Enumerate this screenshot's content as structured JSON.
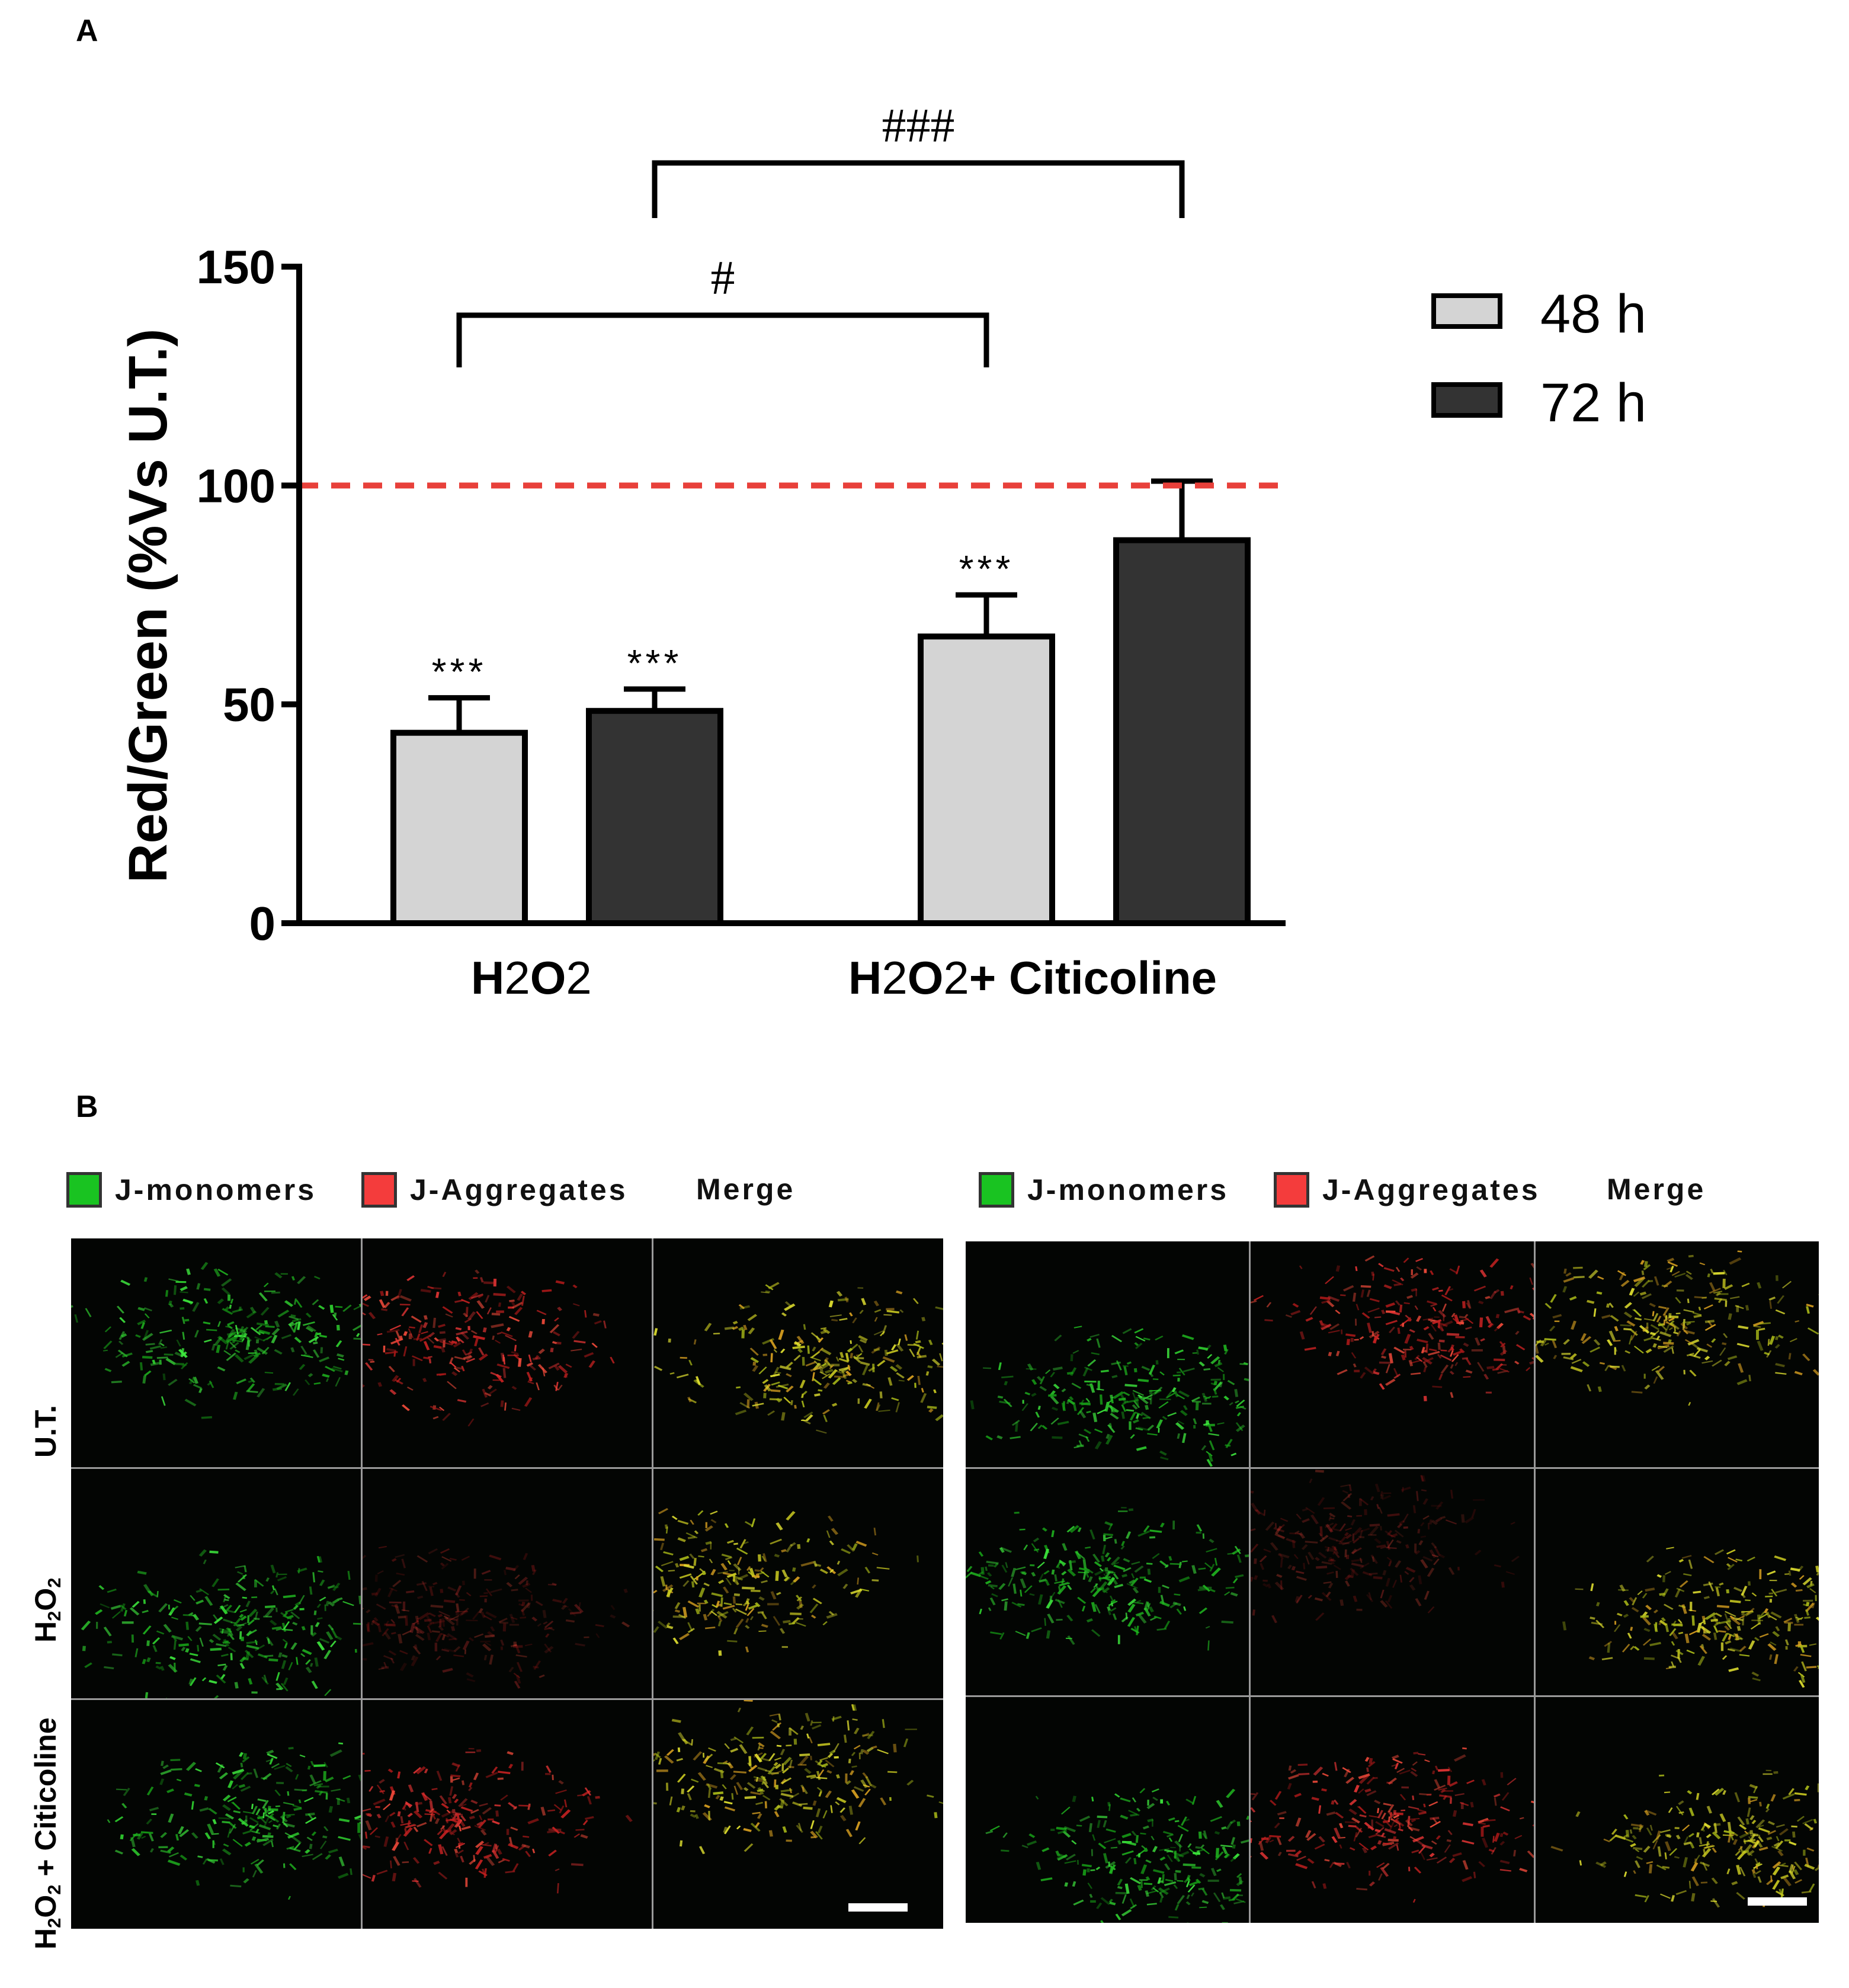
{
  "panels": {
    "a_label": "A",
    "b_label": "B"
  },
  "chart_data": {
    "type": "bar",
    "categories": [
      "H2O2",
      "H2O2+ Citicoline"
    ],
    "category_labels": [
      {
        "main": "H",
        "sub1": "2",
        "mid": "O",
        "sub2": "2",
        "tail": ""
      },
      {
        "main": "H",
        "sub1": "2",
        "mid": "O",
        "sub2": "2",
        "tail": "+ Citicoline"
      }
    ],
    "series": [
      {
        "name": "48 h",
        "color": "#d4d4d4",
        "values": [
          43.5,
          65.5
        ],
        "errors": [
          8,
          9.5
        ],
        "annotations": [
          "***",
          "***"
        ]
      },
      {
        "name": "72 h",
        "color": "#333333",
        "values": [
          48.5,
          87.5
        ],
        "errors": [
          5,
          13.5
        ],
        "annotations": [
          "***",
          ""
        ]
      }
    ],
    "ylabel": "Red/Green (%Vs U.T.)",
    "xlabel": "",
    "ylim": [
      0,
      150
    ],
    "yticks": [
      0,
      50,
      100,
      150
    ],
    "reference_line": {
      "value": 100,
      "color": "#e8403a",
      "style": "dashed"
    },
    "significance": [
      {
        "label": "#",
        "from": "H2O2 48 h",
        "to": "H2O2+ Citicoline 48 h"
      },
      {
        "label": "###",
        "from": "H2O2 72 h",
        "to": "H2O2+ Citicoline 72 h"
      }
    ],
    "legend_position": "top-right"
  },
  "micrographs": {
    "channel_legend": [
      {
        "label": "J-monomers",
        "color": "#19c321"
      },
      {
        "label": "J-Aggregates",
        "color": "#f43c3c"
      },
      {
        "label": "Merge",
        "color": ""
      }
    ],
    "rows": [
      {
        "name": "U.T.",
        "parts": [
          "U.T."
        ]
      },
      {
        "name": "H2O2",
        "parts": [
          "H",
          "2",
          "O",
          "2"
        ]
      },
      {
        "name": "H2O2 + Citicoline",
        "parts": [
          "H",
          "2",
          "O",
          "2",
          " + Citicoline"
        ]
      }
    ]
  }
}
